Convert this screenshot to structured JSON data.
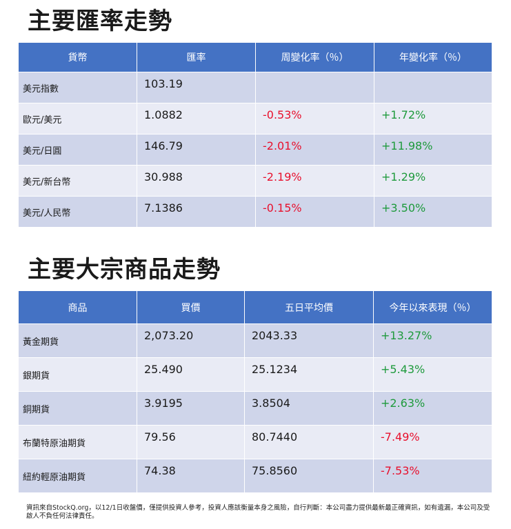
{
  "fx": {
    "title": "主要匯率走勢",
    "headers": [
      "貨幣",
      "匯率",
      "周變化率（％）",
      "年變化率（％）"
    ],
    "rows": [
      {
        "name": "美元指數",
        "rate": "103.19",
        "weekly": "",
        "yearly": ""
      },
      {
        "name": "歐元/美元",
        "rate": "1.0882",
        "weekly": "-0.53%",
        "yearly": "+1.72%"
      },
      {
        "name": "美元/日圓",
        "rate": "146.79",
        "weekly": "-2.01%",
        "yearly": "+11.98%"
      },
      {
        "name": "美元/新台幣",
        "rate": "30.988",
        "weekly": "-2.19%",
        "yearly": "+1.29%"
      },
      {
        "name": "美元/人民幣",
        "rate": "7.1386",
        "weekly": "-0.15%",
        "yearly": "+3.50%"
      }
    ]
  },
  "commodities": {
    "title": "主要大宗商品走勢",
    "headers": [
      "商品",
      "買價",
      "五日平均價",
      "今年以來表現（％）"
    ],
    "rows": [
      {
        "name": "黃金期貨",
        "bid": "2,073.20",
        "avg5": "2043.33",
        "ytd": "+13.27%"
      },
      {
        "name": "銀期貨",
        "bid": "25.490",
        "avg5": "25.1234",
        "ytd": "+5.43%"
      },
      {
        "name": "銅期貨",
        "bid": "3.9195",
        "avg5": "3.8504",
        "ytd": "+2.63%"
      },
      {
        "name": "布蘭特原油期貨",
        "bid": "79.56",
        "avg5": "80.7440",
        "ytd": "-7.49%"
      },
      {
        "name": "紐約輕原油期貨",
        "bid": "74.38",
        "avg5": "75.8560",
        "ytd": "-7.53%"
      }
    ]
  },
  "footer": "資訊來自StockQ.org，以12/1日收盤價，僅提供投資人參考，投資人應該衡量本身之風險，自行判斷：本公司盡力提供最新最正確資訊，如有遺漏，本公司及受啟人不負任何法律責任。",
  "colors": {
    "header": "#4472c4",
    "row_odd": "#cfd5ea",
    "row_even": "#e9ebf5",
    "negative": "#e8102d",
    "positive": "#1e9a3c"
  }
}
